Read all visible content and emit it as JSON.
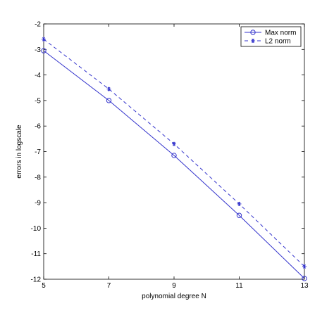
{
  "chart_data": {
    "type": "line",
    "title": "",
    "xlabel": "polynomial degree N",
    "ylabel": "errors in logscale",
    "xlim": [
      5,
      13
    ],
    "ylim": [
      -12,
      -2
    ],
    "x_ticks": [
      5,
      7,
      9,
      11,
      13
    ],
    "y_ticks": [
      -2,
      -3,
      -4,
      -5,
      -6,
      -7,
      -8,
      -9,
      -10,
      -11,
      -12
    ],
    "x_tick_labels": [
      "5",
      "7",
      "9",
      "11",
      "13"
    ],
    "y_tick_labels": [
      "-2",
      "-3",
      "-4",
      "-5",
      "-6",
      "-7",
      "-8",
      "-9",
      "-10",
      "-11",
      "-12"
    ],
    "grid": false,
    "legend_position": "top-right",
    "series": [
      {
        "name": "Max norm",
        "x": [
          5,
          7,
          9,
          11,
          13
        ],
        "y": [
          -3.05,
          -5.0,
          -7.15,
          -9.5,
          -11.97
        ],
        "color": "#3333cc",
        "line_style": "solid",
        "marker": "circle"
      },
      {
        "name": "L2 norm",
        "x": [
          5,
          7,
          9,
          11,
          13
        ],
        "y": [
          -2.6,
          -4.55,
          -6.7,
          -9.05,
          -11.5
        ],
        "color": "#3333cc",
        "line_style": "dashed",
        "marker": "asterisk"
      }
    ]
  }
}
